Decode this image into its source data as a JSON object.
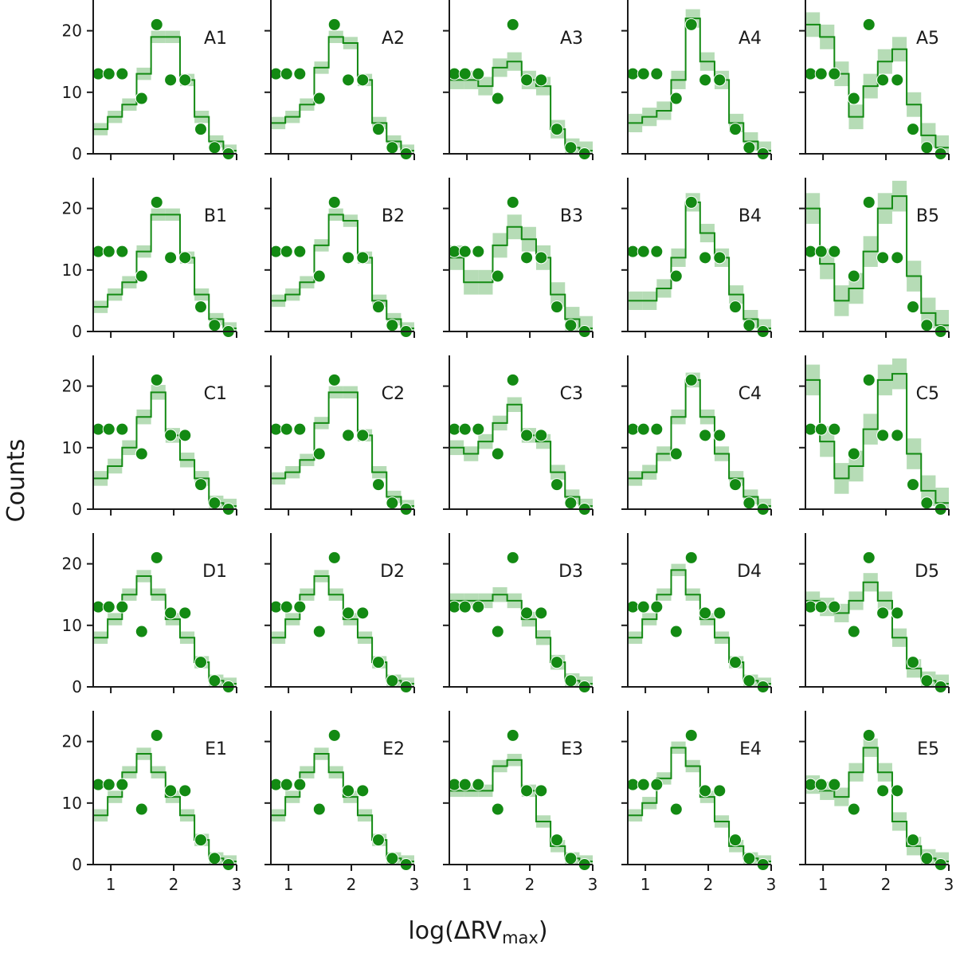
{
  "figure": {
    "ylabel": "Counts",
    "xlabel_prefix": "log(ΔRV",
    "xlabel_sub": "max",
    "xlabel_suffix": ")"
  },
  "chart_data": {
    "type": "histogram-grid",
    "grid_rows": [
      "A",
      "B",
      "C",
      "D",
      "E"
    ],
    "grid_cols": [
      "1",
      "2",
      "3",
      "4",
      "5"
    ],
    "xlim": [
      0.72,
      3.0
    ],
    "ylim": [
      0,
      25
    ],
    "xticks": [
      1,
      2,
      3
    ],
    "yticks": [
      0,
      10,
      20
    ],
    "bin_edges": [
      0.72,
      0.95,
      1.18,
      1.41,
      1.64,
      1.87,
      2.1,
      2.33,
      2.56,
      2.79,
      3.0
    ],
    "colors": {
      "line": "#138a13",
      "band": "#a9d6a9",
      "points": "#138a13",
      "axes": "#1a1a1a"
    },
    "observed": {
      "x": [
        0.8,
        0.97,
        1.18,
        1.49,
        1.73,
        1.95,
        2.18,
        2.43,
        2.65,
        2.87
      ],
      "y": [
        13,
        13,
        13,
        9,
        21,
        12,
        12,
        4,
        1,
        0
      ]
    },
    "panels": [
      {
        "label": "A1",
        "model": [
          4,
          6,
          8,
          13,
          19,
          19,
          12,
          6,
          2,
          0.5
        ],
        "band": 1.0
      },
      {
        "label": "A2",
        "model": [
          5,
          6,
          8,
          14,
          19,
          18,
          12,
          5,
          2,
          0.5
        ],
        "band": 1.0
      },
      {
        "label": "A3",
        "model": [
          12,
          12,
          11,
          14,
          15,
          12,
          11,
          4,
          1,
          0.5
        ],
        "band": 1.5
      },
      {
        "label": "A4",
        "model": [
          5,
          6,
          7,
          12,
          22,
          15,
          12,
          5,
          2,
          0.5
        ],
        "band": 1.5
      },
      {
        "label": "A5",
        "model": [
          21,
          19,
          13,
          6,
          11,
          15,
          17,
          8,
          3,
          1
        ],
        "band": 2.0
      },
      {
        "label": "B1",
        "model": [
          4,
          6,
          8,
          13,
          19,
          19,
          12,
          6,
          2,
          0.5
        ],
        "band": 1.0
      },
      {
        "label": "B2",
        "model": [
          5,
          6,
          8,
          14,
          19,
          18,
          12,
          5,
          2,
          0.5
        ],
        "band": 1.0
      },
      {
        "label": "B3",
        "model": [
          12,
          8,
          8,
          14,
          17,
          15,
          12,
          6,
          2,
          0.5
        ],
        "band": 2.0
      },
      {
        "label": "B4",
        "model": [
          5,
          5,
          7,
          12,
          21,
          16,
          12,
          6,
          2,
          0.5
        ],
        "band": 1.5
      },
      {
        "label": "B5",
        "model": [
          20,
          11,
          5,
          7,
          13,
          20,
          22,
          9,
          3,
          1
        ],
        "band": 2.5
      },
      {
        "label": "C1",
        "model": [
          5,
          7,
          10,
          15,
          19,
          12,
          8,
          5,
          1,
          0.5
        ],
        "band": 1.2
      },
      {
        "label": "C2",
        "model": [
          5,
          6,
          8,
          14,
          19,
          19,
          12,
          6,
          2,
          0.5
        ],
        "band": 1.0
      },
      {
        "label": "C3",
        "model": [
          10,
          9,
          11,
          14,
          17,
          12,
          11,
          6,
          2,
          0.5
        ],
        "band": 1.2
      },
      {
        "label": "C4",
        "model": [
          5,
          6,
          9,
          15,
          21,
          15,
          9,
          5,
          2,
          0.5
        ],
        "band": 1.2
      },
      {
        "label": "C5",
        "model": [
          21,
          11,
          5,
          7,
          13,
          21,
          22,
          9,
          3,
          1
        ],
        "band": 2.5
      },
      {
        "label": "D1",
        "model": [
          8,
          11,
          15,
          18,
          15,
          11,
          8,
          4,
          1,
          0.5
        ],
        "band": 1.0
      },
      {
        "label": "D2",
        "model": [
          8,
          11,
          15,
          18,
          15,
          11,
          8,
          4,
          1,
          0.5
        ],
        "band": 1.0
      },
      {
        "label": "D3",
        "model": [
          14,
          14,
          14,
          15,
          14,
          11,
          8,
          4,
          1,
          0.5
        ],
        "band": 1.2
      },
      {
        "label": "D4",
        "model": [
          8,
          11,
          15,
          19,
          15,
          11,
          8,
          4,
          1,
          0.5
        ],
        "band": 1.0
      },
      {
        "label": "D5",
        "model": [
          14,
          13,
          12,
          14,
          17,
          14,
          8,
          3,
          1,
          0.5
        ],
        "band": 1.5
      },
      {
        "label": "E1",
        "model": [
          8,
          11,
          15,
          18,
          15,
          11,
          8,
          4,
          1,
          0.5
        ],
        "band": 1.0
      },
      {
        "label": "E2",
        "model": [
          8,
          11,
          15,
          18,
          15,
          11,
          8,
          4,
          1,
          0.5
        ],
        "band": 1.0
      },
      {
        "label": "E3",
        "model": [
          12,
          12,
          12,
          16,
          17,
          12,
          7,
          3,
          1,
          0.5
        ],
        "band": 1.0
      },
      {
        "label": "E4",
        "model": [
          8,
          10,
          14,
          19,
          16,
          11,
          7,
          3,
          1,
          0.5
        ],
        "band": 1.0
      },
      {
        "label": "E5",
        "model": [
          13,
          12,
          11,
          15,
          19,
          15,
          7,
          3,
          1,
          0.5
        ],
        "band": 1.5
      }
    ]
  }
}
